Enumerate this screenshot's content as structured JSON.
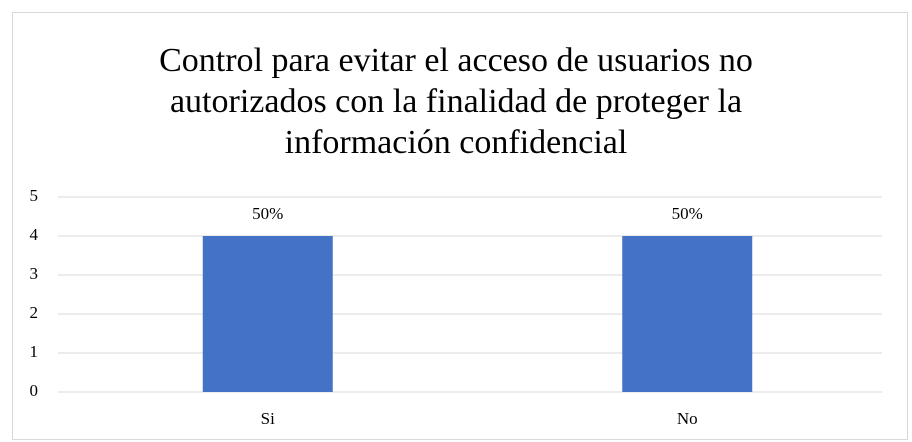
{
  "chart_data": {
    "type": "bar",
    "title": "Control para evitar el acceso de usuarios no autorizados con la finalidad de proteger la información confidencial",
    "categories": [
      "Si",
      "No"
    ],
    "values": [
      4,
      4
    ],
    "value_labels": [
      "50%",
      "50%"
    ],
    "color": "#4472c4",
    "ylim": [
      0,
      5
    ],
    "yticks": [
      0,
      1,
      2,
      3,
      4,
      5
    ],
    "grid": true
  }
}
